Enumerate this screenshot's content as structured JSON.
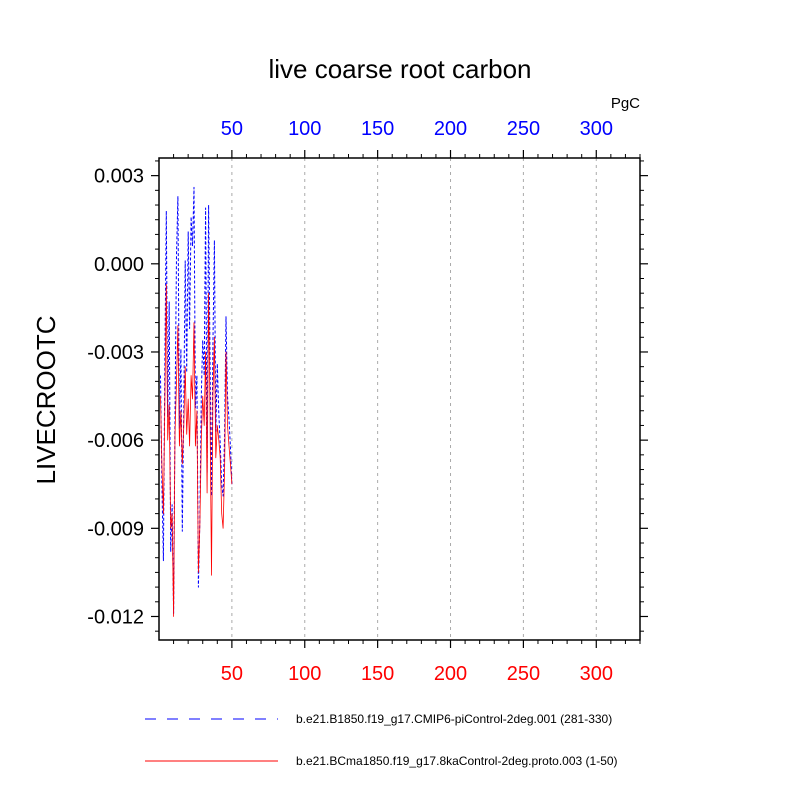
{
  "chart_data": {
    "type": "line",
    "title": "live coarse root carbon",
    "units": "PgC",
    "ylabel": "LIVECROOTC",
    "xlim": [
      0,
      330
    ],
    "ylim": [
      -0.0128,
      0.0036
    ],
    "x_ticks": [
      50,
      100,
      150,
      200,
      250,
      300
    ],
    "x_tick_labels": [
      "50",
      "100",
      "150",
      "200",
      "250",
      "300"
    ],
    "top_axis_color": "#0000ff",
    "bottom_axis_color": "#ff0000",
    "y_ticks": [
      0.003,
      0.0,
      -0.003,
      -0.006,
      -0.009,
      -0.012
    ],
    "y_tick_labels": [
      "0.003",
      "0.000",
      "-0.003",
      "-0.006",
      "-0.009",
      "-0.012"
    ],
    "grid": "vertical dotted at x ticks",
    "series": [
      {
        "name": "b.e21.B1850.f19_g17.CMIP6-piControl-2deg.001 (281-330)",
        "color": "#0000ff",
        "dash": "dashed",
        "x": [
          1,
          2,
          3,
          4,
          5,
          6,
          7,
          8,
          9,
          10,
          11,
          12,
          13,
          14,
          15,
          16,
          17,
          18,
          19,
          20,
          21,
          22,
          23,
          24,
          25,
          26,
          27,
          28,
          29,
          30,
          31,
          32,
          33,
          34,
          35,
          36,
          37,
          38,
          39,
          40,
          41,
          42,
          43,
          44,
          45,
          46,
          47,
          48,
          49,
          50
        ],
        "values": [
          -0.0038,
          -0.0075,
          -0.0101,
          -0.0035,
          0.0018,
          -0.0052,
          -0.0013,
          -0.0098,
          -0.0082,
          -0.0119,
          -0.0051,
          0.0003,
          0.0023,
          -0.0056,
          -0.0029,
          -0.0091,
          -0.0048,
          0.0001,
          -0.0037,
          0.0011,
          -0.0022,
          0.0016,
          0.0006,
          0.0026,
          -0.0049,
          -0.0038,
          -0.011,
          -0.0088,
          -0.0045,
          -0.0026,
          -0.0038,
          0.0019,
          -0.0071,
          0.002,
          -0.0031,
          -0.0079,
          -0.0028,
          0.0008,
          -0.0057,
          -0.0034,
          -0.0051,
          -0.0061,
          -0.0075,
          -0.0079,
          -0.0058,
          -0.0018,
          -0.0045,
          -0.0053,
          -0.0062,
          -0.0075
        ]
      },
      {
        "name": "b.e21.BCma1850.f19_g17.8kaControl-2deg.proto.003 (1-50)",
        "color": "#ff0000",
        "dash": "solid",
        "x": [
          1,
          2,
          3,
          4,
          5,
          6,
          7,
          8,
          9,
          10,
          11,
          12,
          13,
          14,
          15,
          16,
          17,
          18,
          19,
          20,
          21,
          22,
          23,
          24,
          25,
          26,
          27,
          28,
          29,
          30,
          31,
          32,
          33,
          34,
          35,
          36,
          37,
          38,
          39,
          40,
          41,
          42,
          43,
          44,
          45,
          46,
          47,
          48,
          49,
          50
        ],
        "values": [
          -0.0045,
          -0.0068,
          -0.0085,
          -0.0049,
          -0.0007,
          -0.006,
          -0.0048,
          -0.009,
          -0.0085,
          -0.012,
          -0.0058,
          -0.004,
          -0.0021,
          -0.0062,
          -0.005,
          -0.0068,
          -0.0055,
          -0.0035,
          -0.0058,
          -0.0046,
          -0.0062,
          -0.0038,
          -0.0046,
          -0.002,
          -0.0062,
          -0.005,
          -0.0105,
          -0.009,
          -0.006,
          -0.0045,
          -0.0055,
          -0.003,
          -0.0078,
          -0.001,
          -0.005,
          -0.0106,
          -0.0045,
          -0.0025,
          -0.0066,
          -0.0055,
          -0.006,
          -0.0066,
          -0.0085,
          -0.009,
          -0.007,
          -0.003,
          -0.0055,
          -0.0062,
          -0.0068,
          -0.0075
        ]
      }
    ],
    "legend_placement": "bottom"
  }
}
